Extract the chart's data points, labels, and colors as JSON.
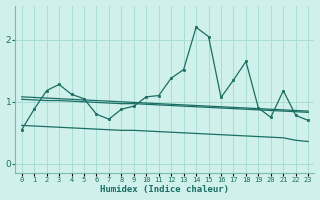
{
  "title": "",
  "xlabel": "Humidex (Indice chaleur)",
  "background_color": "#cff0eb",
  "line_color": "#1a6e64",
  "grid_color": "#a8ddd6",
  "x_values": [
    0,
    1,
    2,
    3,
    4,
    5,
    6,
    7,
    8,
    9,
    10,
    11,
    12,
    13,
    14,
    15,
    16,
    17,
    18,
    19,
    20,
    21,
    22,
    23
  ],
  "main_series": [
    0.55,
    0.88,
    1.18,
    1.28,
    1.12,
    1.05,
    0.8,
    0.72,
    0.88,
    0.93,
    1.08,
    1.1,
    1.38,
    1.52,
    2.2,
    2.05,
    1.07,
    1.35,
    1.65,
    0.9,
    0.75,
    1.18,
    0.78,
    0.7
  ],
  "trend_upper1": [
    1.08,
    1.07,
    1.06,
    1.05,
    1.04,
    1.03,
    1.02,
    1.01,
    1.0,
    0.99,
    0.98,
    0.97,
    0.96,
    0.95,
    0.94,
    0.93,
    0.92,
    0.91,
    0.9,
    0.89,
    0.88,
    0.87,
    0.86,
    0.85
  ],
  "trend_upper2": [
    1.04,
    1.03,
    1.02,
    1.02,
    1.01,
    1.0,
    0.99,
    0.98,
    0.97,
    0.97,
    0.96,
    0.95,
    0.94,
    0.93,
    0.92,
    0.91,
    0.9,
    0.89,
    0.88,
    0.87,
    0.86,
    0.85,
    0.84,
    0.83
  ],
  "trend_lower": [
    0.62,
    0.61,
    0.6,
    0.59,
    0.58,
    0.57,
    0.56,
    0.55,
    0.54,
    0.54,
    0.53,
    0.52,
    0.51,
    0.5,
    0.49,
    0.48,
    0.47,
    0.46,
    0.45,
    0.44,
    0.43,
    0.42,
    0.38,
    0.36
  ],
  "ylim": [
    -0.15,
    2.55
  ],
  "xlim": [
    -0.5,
    23.5
  ],
  "yticks": [
    0,
    1,
    2
  ],
  "xtick_labels": [
    "0",
    "1",
    "2",
    "3",
    "4",
    "5",
    "6",
    "7",
    "8",
    "9",
    "10",
    "11",
    "12",
    "13",
    "14",
    "15",
    "16",
    "17",
    "18",
    "19",
    "20",
    "21",
    "22",
    "23"
  ]
}
